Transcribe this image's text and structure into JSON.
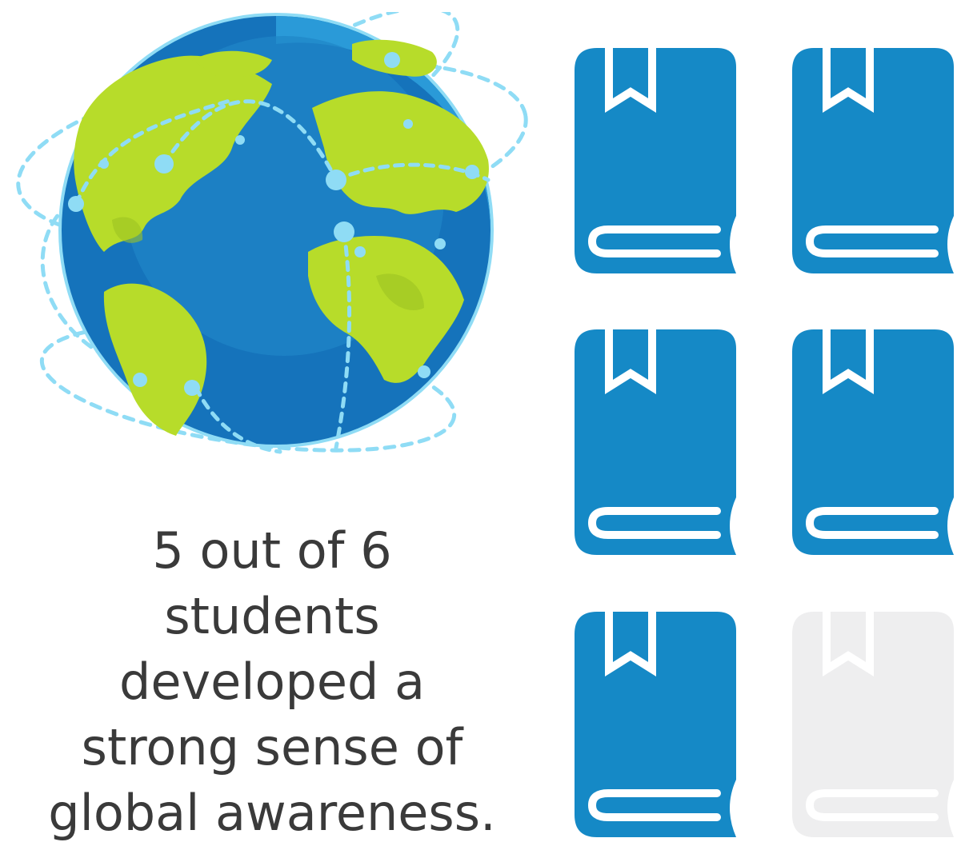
{
  "statistic": {
    "caption_lines": [
      "5 out of 6",
      "students",
      "developed a",
      "strong sense of",
      "global awareness."
    ],
    "count": 5,
    "total": 6
  },
  "icons": {
    "globe": "globe-icon",
    "unit": "book-icon"
  },
  "colors": {
    "book_filled": "#1589c6",
    "book_empty": "#eeeeef",
    "ocean_deep": "#1573bb",
    "ocean_light": "#2a9ad8",
    "land": "#b7dc2a",
    "land_dark": "#9cc323",
    "dots": "#8fdcf5",
    "text": "#3a3a3a"
  }
}
